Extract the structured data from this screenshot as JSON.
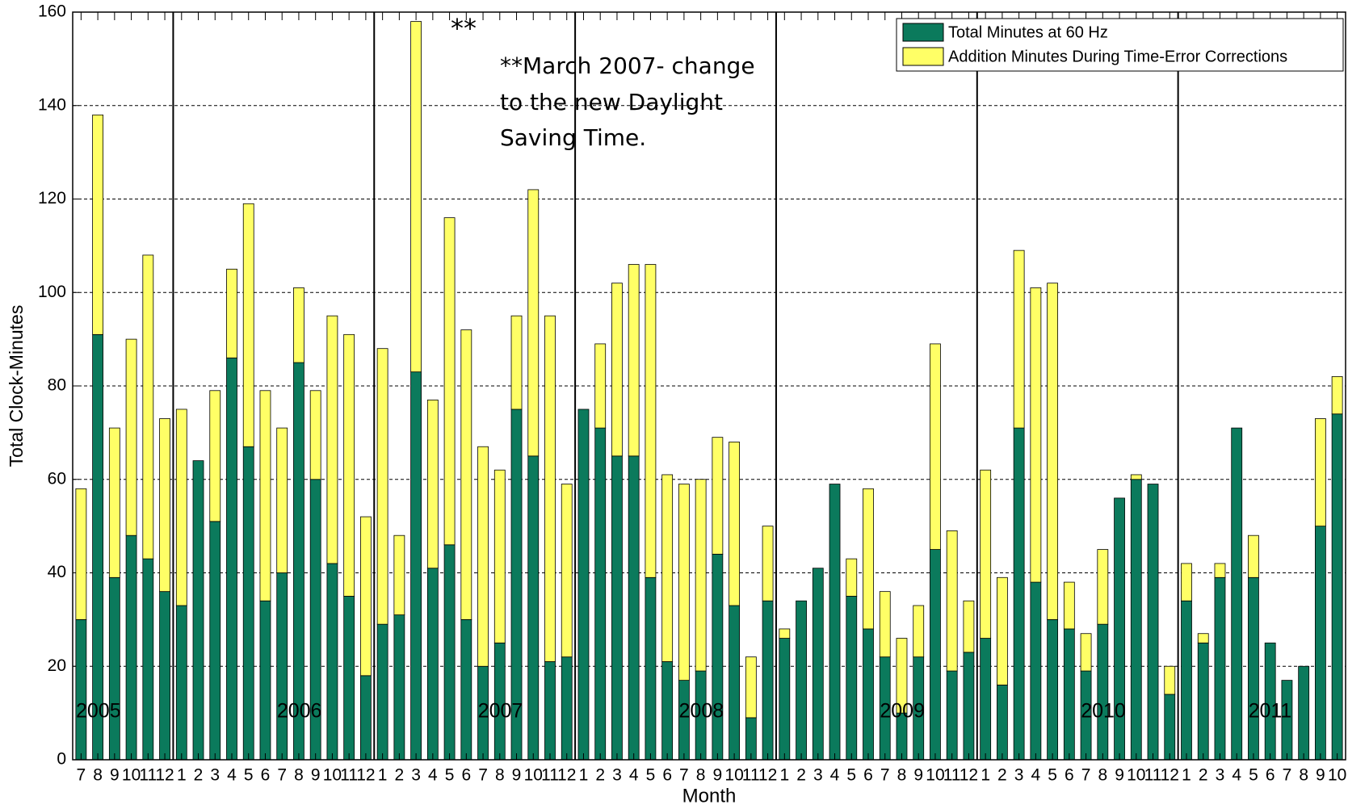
{
  "chart_data": {
    "type": "bar",
    "stacked": true,
    "x_label": "Month",
    "y_label": "Total Clock-Minutes",
    "categories": [
      "7",
      "8",
      "9",
      "10",
      "11",
      "12",
      "1",
      "2",
      "3",
      "4",
      "5",
      "6",
      "7",
      "8",
      "9",
      "10",
      "11",
      "12",
      "1",
      "2",
      "3",
      "4",
      "5",
      "6",
      "7",
      "8",
      "9",
      "10",
      "11",
      "12",
      "1",
      "2",
      "3",
      "4",
      "5",
      "6",
      "7",
      "8",
      "9",
      "10",
      "11",
      "12",
      "1",
      "2",
      "3",
      "4",
      "5",
      "6",
      "7",
      "8",
      "9",
      "10",
      "11",
      "12",
      "1",
      "2",
      "3",
      "4",
      "5",
      "6",
      "7",
      "8",
      "9",
      "10",
      "11",
      "12",
      "1",
      "2",
      "3",
      "4",
      "5",
      "6",
      "7",
      "8",
      "9",
      "10"
    ],
    "year_labels": [
      "2005",
      "2006",
      "2007",
      "2008",
      "2009",
      "2010",
      "2011"
    ],
    "series": [
      {
        "name": "Total Minutes at 60 Hz",
        "color": "#0b7a5c",
        "values": [
          30,
          91,
          39,
          48,
          43,
          36,
          33,
          64,
          51,
          86,
          67,
          34,
          40,
          85,
          60,
          42,
          35,
          18,
          29,
          31,
          83,
          41,
          46,
          30,
          20,
          25,
          75,
          65,
          21,
          22,
          75,
          71,
          65,
          65,
          39,
          21,
          17,
          19,
          44,
          33,
          9,
          34,
          26,
          34,
          41,
          59,
          35,
          28,
          22,
          10,
          22,
          45,
          19,
          23,
          26,
          16,
          71,
          38,
          30,
          28,
          19,
          29,
          56,
          60,
          59,
          14,
          34,
          25,
          39,
          71,
          39,
          25,
          17,
          20,
          50,
          74
        ]
      },
      {
        "name": "Addition Minutes During Time-Error Corrections",
        "color": "#ffff66",
        "values": [
          28,
          47,
          32,
          42,
          65,
          37,
          42,
          0,
          28,
          19,
          52,
          45,
          31,
          16,
          19,
          53,
          56,
          34,
          59,
          17,
          75,
          36,
          70,
          62,
          47,
          37,
          20,
          57,
          74,
          37,
          0,
          18,
          37,
          41,
          67,
          40,
          42,
          41,
          25,
          35,
          13,
          16,
          2,
          0,
          0,
          0,
          8,
          30,
          14,
          16,
          11,
          44,
          30,
          11,
          36,
          23,
          38,
          63,
          72,
          10,
          8,
          16,
          0,
          1,
          0,
          6,
          8,
          2,
          3,
          0,
          9,
          0,
          0,
          0,
          23,
          8
        ]
      }
    ],
    "ylim": [
      0,
      160
    ],
    "yticks": [
      0,
      20,
      40,
      60,
      80,
      100,
      120,
      140,
      160
    ],
    "grid": true,
    "legend": "upper right",
    "annotation_marker": "**",
    "annotation": [
      "**March 2007- change",
      "to the new Daylight",
      "Saving Time."
    ]
  }
}
